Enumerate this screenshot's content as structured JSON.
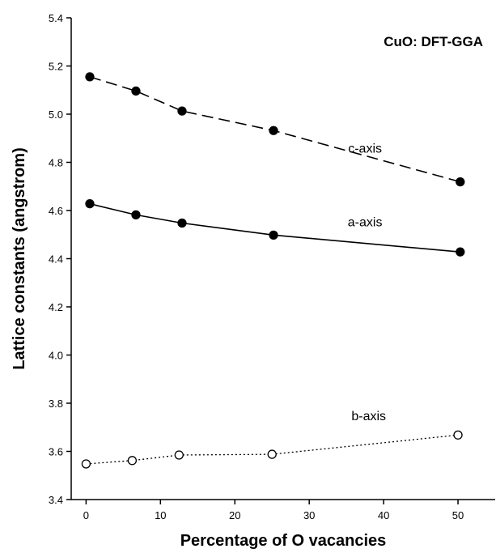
{
  "chart_data": {
    "type": "line",
    "title": "CuO: DFT-GGA",
    "xlabel": "Percentage of O vacancies",
    "ylabel": "Lattice constants (angstrom)",
    "xlim": [
      -2,
      55
    ],
    "ylim": [
      3.4,
      5.4
    ],
    "xticks": [
      0,
      10,
      20,
      30,
      40,
      50
    ],
    "yticks": [
      3.4,
      3.6,
      3.8,
      4.0,
      4.2,
      4.4,
      4.6,
      4.8,
      5.0,
      5.2,
      5.4
    ],
    "grid": false,
    "legend": "none",
    "series": [
      {
        "name": "c-axis",
        "x": [
          0.5,
          6.7,
          12.9,
          25.2,
          50.3
        ],
        "values": [
          5.155,
          5.096,
          5.013,
          4.932,
          4.719
        ],
        "line_style": "dashed",
        "marker": "filled-circle",
        "label_at": [
          37.5,
          4.84
        ]
      },
      {
        "name": "a-axis",
        "x": [
          0.5,
          6.7,
          12.9,
          25.2,
          50.3
        ],
        "values": [
          4.628,
          4.582,
          4.548,
          4.498,
          4.428
        ],
        "line_style": "solid",
        "marker": "filled-circle",
        "label_at": [
          37.5,
          4.535
        ]
      },
      {
        "name": "b-axis",
        "x": [
          0,
          6.2,
          12.5,
          25,
          50
        ],
        "values": [
          3.548,
          3.562,
          3.585,
          3.588,
          3.668
        ],
        "line_style": "dotted",
        "marker": "open-circle",
        "label_at": [
          38,
          3.73
        ]
      }
    ]
  }
}
